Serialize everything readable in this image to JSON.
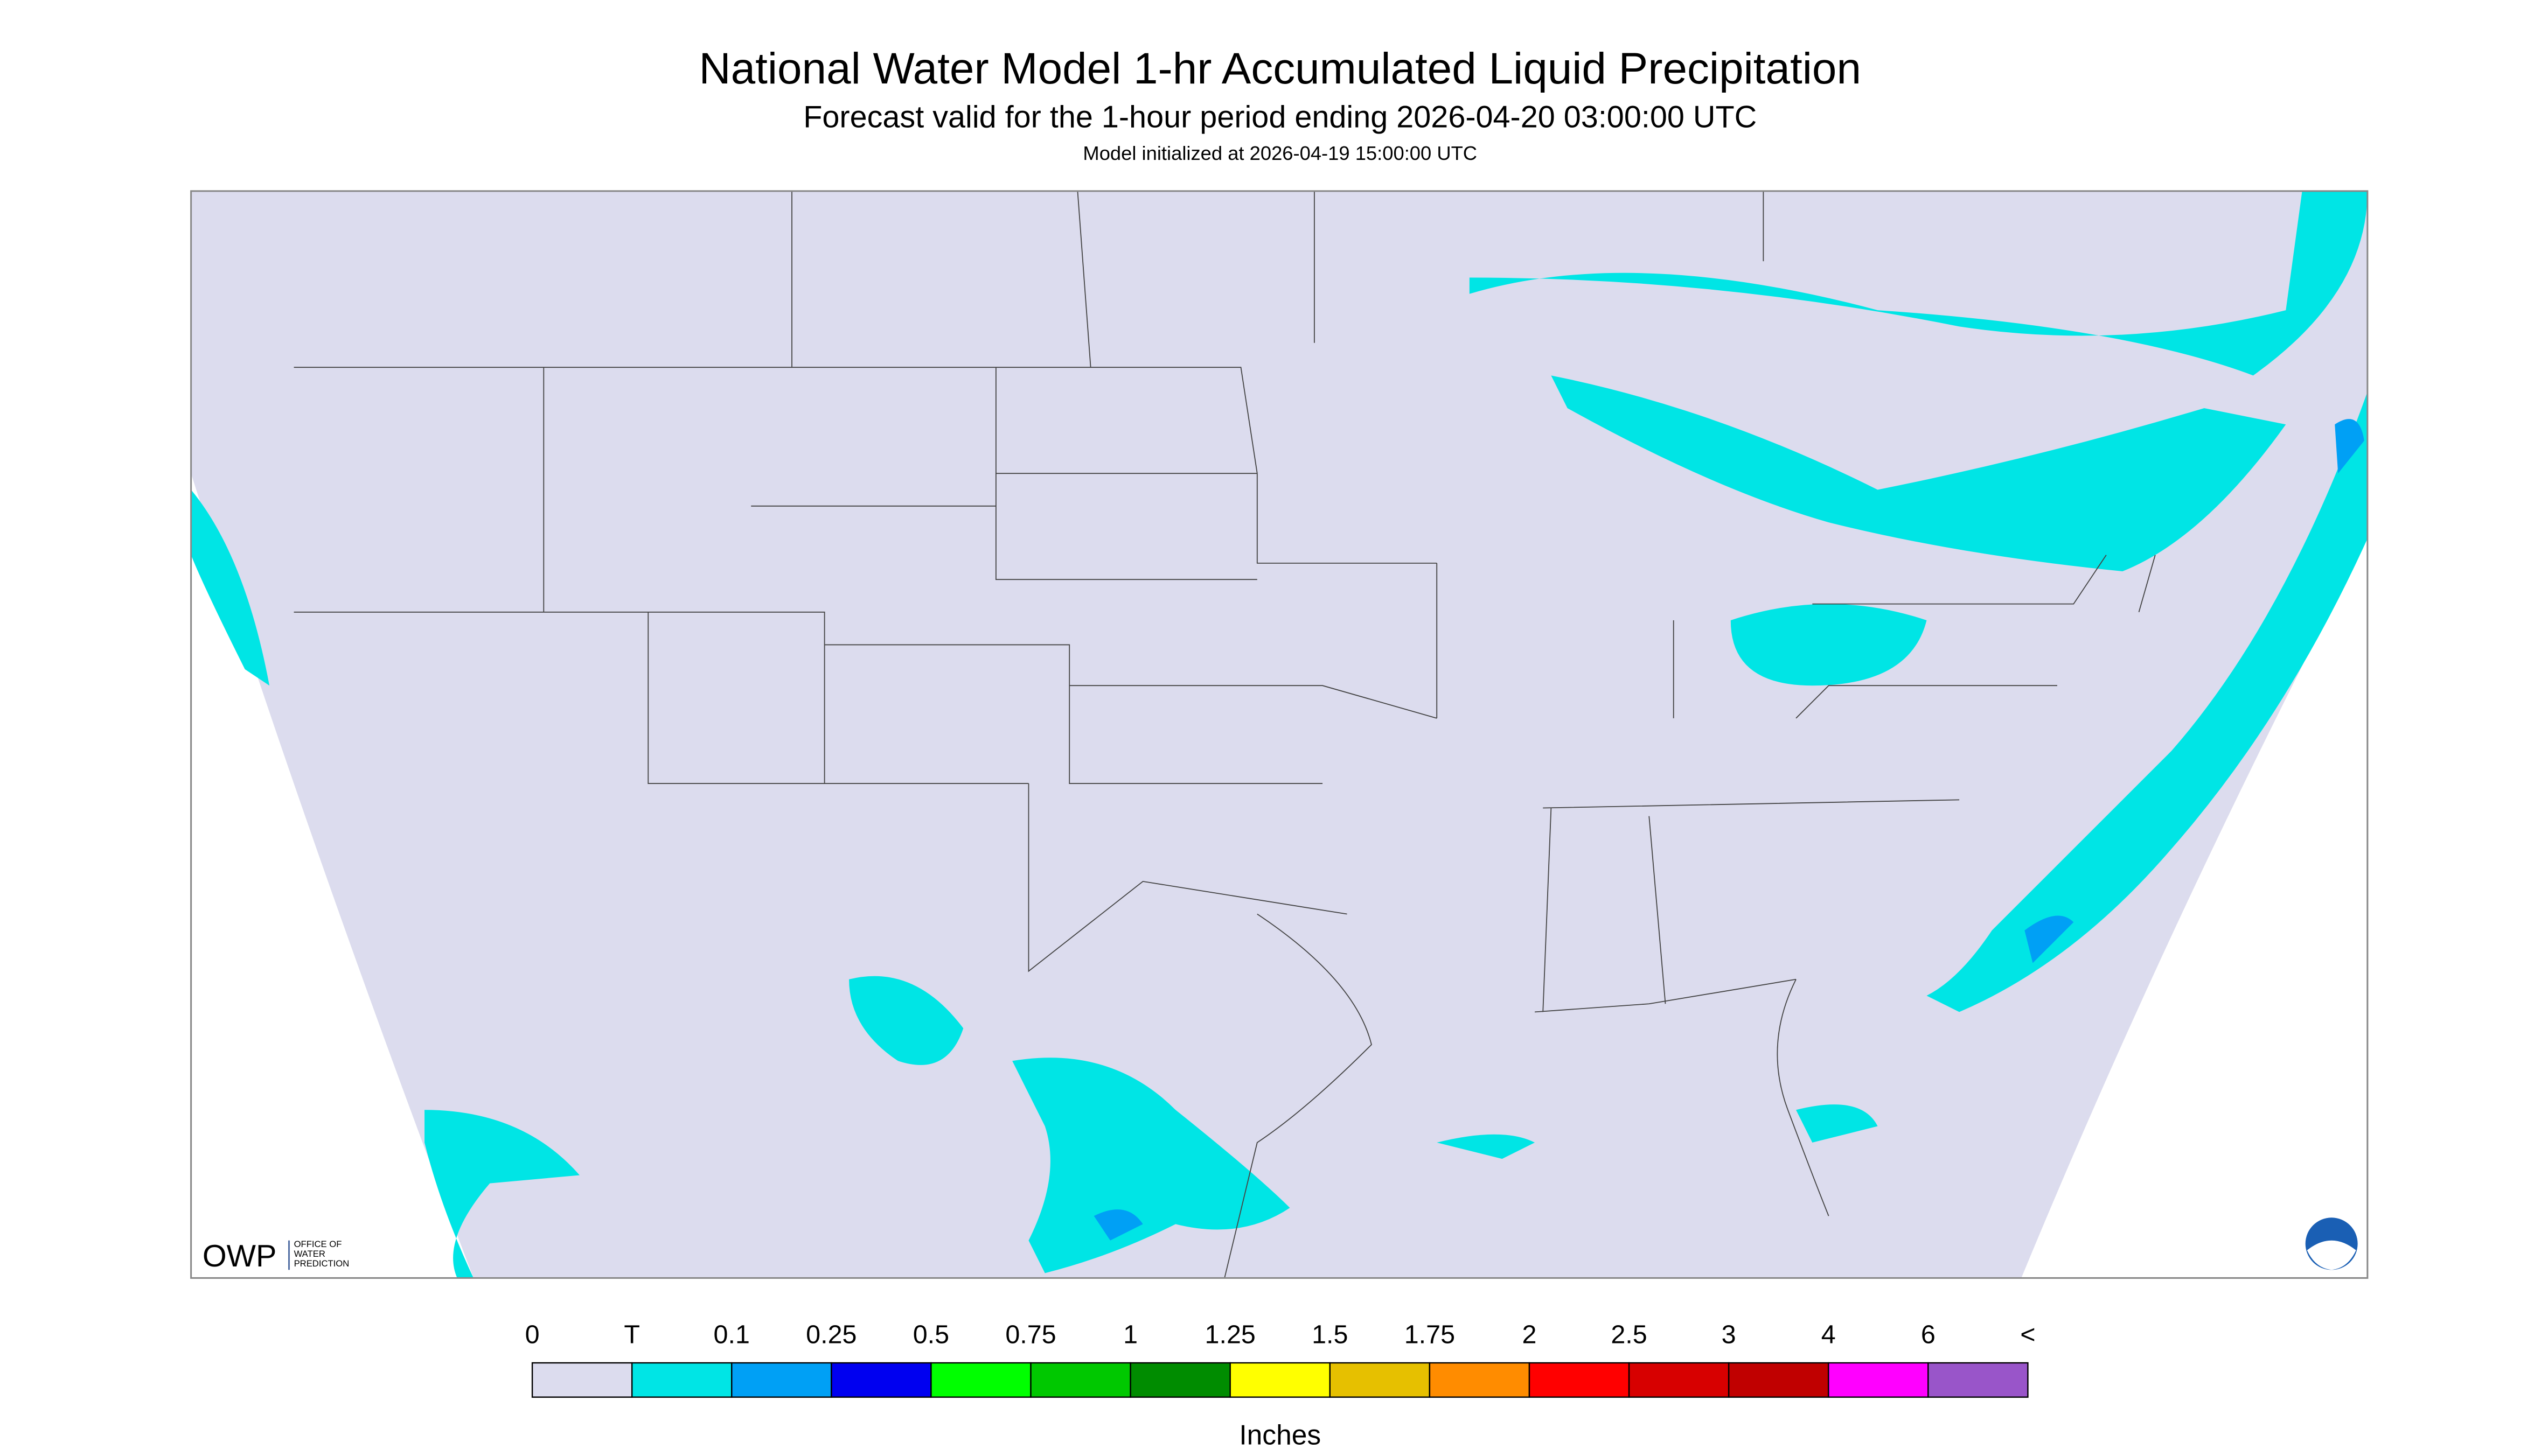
{
  "header": {
    "title": "National Water Model 1-hr Accumulated Liquid Precipitation",
    "subtitle": "Forecast valid for the 1-hour period ending 2026-04-20 03:00:00 UTC",
    "init": "Model initialized at 2026-04-19 15:00:00 UTC"
  },
  "logo": {
    "abbr": "OWP",
    "name": [
      "OFFICE OF",
      "WATER",
      "PREDICTION"
    ]
  },
  "legend": {
    "labels": [
      "0",
      "T",
      "0.1",
      "0.25",
      "0.5",
      "0.75",
      "1",
      "1.25",
      "1.5",
      "1.75",
      "2",
      "2.5",
      "3",
      "4",
      "6",
      "<"
    ],
    "colors": [
      "#dcdcee",
      "#00e5e5",
      "#00a0f5",
      "#0000f0",
      "#00ff00",
      "#00c800",
      "#008c00",
      "#ffff00",
      "#e6c000",
      "#ff8c00",
      "#ff0000",
      "#d70000",
      "#c00000",
      "#ff00ff",
      "#9955c9"
    ],
    "unit": "Inches"
  }
}
